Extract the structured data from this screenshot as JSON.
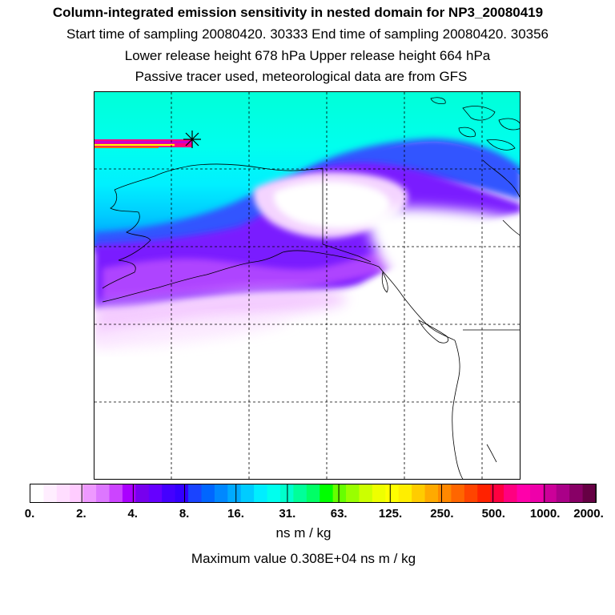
{
  "title": {
    "line1": "Column-integrated emission sensitivity in nested domain for NP3_20080419",
    "line2": "Start time of sampling 20080420. 30333     End time of sampling 20080420. 30356",
    "line3": "Lower release height  678 hPa       Upper release height  664 hPa",
    "line4": "Passive tracer used, meteorological data are from GFS"
  },
  "map": {
    "release_marker": "star-marker",
    "plume_colors": [
      "#00ffdd",
      "#00ffff",
      "#00ccff",
      "#0099ff",
      "#3333ff",
      "#6600ff",
      "#9900ff",
      "#cc33ff",
      "#ee88ff",
      "#ffccff"
    ],
    "streak_colors": [
      "#ff0080",
      "#cc00cc",
      "#ffff00"
    ]
  },
  "colorbar": {
    "colors": [
      "#ffffff",
      "#ffeeff",
      "#ffddff",
      "#ffccff",
      "#ee99ff",
      "#dd77ff",
      "#cc44ff",
      "#aa00ff",
      "#7700ee",
      "#6600ff",
      "#4400ff",
      "#3300ff",
      "#1a44ff",
      "#0066ff",
      "#0088ff",
      "#00aaff",
      "#00ccff",
      "#00eeff",
      "#00ffee",
      "#00ffcc",
      "#00ff99",
      "#00ff66",
      "#00ff00",
      "#66ff00",
      "#99ff00",
      "#ccff00",
      "#eeff00",
      "#ffff00",
      "#ffee00",
      "#ffcc00",
      "#ffaa00",
      "#ff8800",
      "#ff6600",
      "#ff4400",
      "#ff2200",
      "#ff0040",
      "#ff0080",
      "#ff00aa",
      "#ee00aa",
      "#cc0099",
      "#aa0088",
      "#880066",
      "#660044"
    ],
    "tick_labels": [
      "0.",
      "2.",
      "4.",
      "8.",
      "16.",
      "31.",
      "63.",
      "125.",
      "250.",
      "500.",
      "1000.",
      "2000."
    ],
    "units": "ns m / kg"
  },
  "footer": {
    "max_value": "Maximum value  0.308E+04 ns m / kg"
  }
}
